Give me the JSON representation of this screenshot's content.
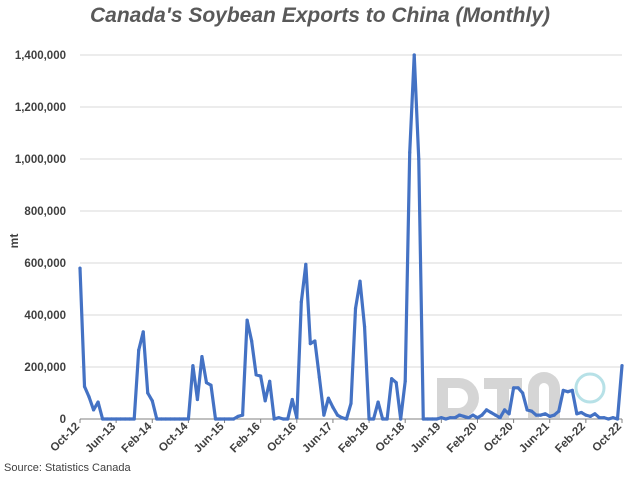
{
  "chart_data": {
    "type": "line",
    "title": "Canada's Soybean Exports to China (Monthly)",
    "ylabel": "mt",
    "xlabel": "",
    "ylim": [
      0,
      1400000
    ],
    "y_ticks": [
      0,
      200000,
      400000,
      600000,
      800000,
      1000000,
      1200000,
      1400000
    ],
    "y_tick_labels": [
      "0",
      "200,000",
      "400,000",
      "600,000",
      "800,000",
      "1,000,000",
      "1,200,000",
      "1,400,000"
    ],
    "x_tick_labels": [
      "Oct-12",
      "Jun-13",
      "Feb-14",
      "Oct-14",
      "Jun-15",
      "Feb-16",
      "Oct-16",
      "Jun-17",
      "Feb-18",
      "Oct-18",
      "Jun-19",
      "Feb-20",
      "Oct-20",
      "Jun-21",
      "Feb-22",
      "Oct-22"
    ],
    "grid": "horizontal",
    "series": [
      {
        "color": "#4472C4",
        "start": "Oct-12",
        "end": "Oct-22",
        "values": [
          580000,
          125000,
          85000,
          35000,
          65000,
          0,
          0,
          0,
          0,
          0,
          0,
          0,
          0,
          265000,
          335000,
          100000,
          70000,
          0,
          0,
          0,
          0,
          0,
          0,
          0,
          0,
          205000,
          75000,
          240000,
          140000,
          130000,
          0,
          0,
          0,
          0,
          0,
          10000,
          15000,
          380000,
          300000,
          170000,
          165000,
          70000,
          145000,
          0,
          5000,
          0,
          0,
          75000,
          5000,
          450000,
          595000,
          290000,
          300000,
          160000,
          15000,
          80000,
          45000,
          15000,
          5000,
          0,
          60000,
          425000,
          530000,
          355000,
          0,
          0,
          65000,
          0,
          0,
          155000,
          140000,
          0,
          145000,
          1025000,
          1400000,
          1000000,
          0,
          0,
          0,
          0,
          5000,
          0,
          5000,
          5000,
          15000,
          10000,
          5000,
          15000,
          5000,
          15000,
          35000,
          25000,
          15000,
          5000,
          35000,
          20000,
          120000,
          120000,
          100000,
          35000,
          30000,
          15000,
          15000,
          20000,
          10000,
          15000,
          30000,
          110000,
          105000,
          110000,
          20000,
          25000,
          15000,
          10000,
          20000,
          5000,
          5000,
          0,
          5000,
          0,
          205000
        ]
      }
    ],
    "source": "Source: Statistics Canada",
    "watermark": "DTN"
  }
}
